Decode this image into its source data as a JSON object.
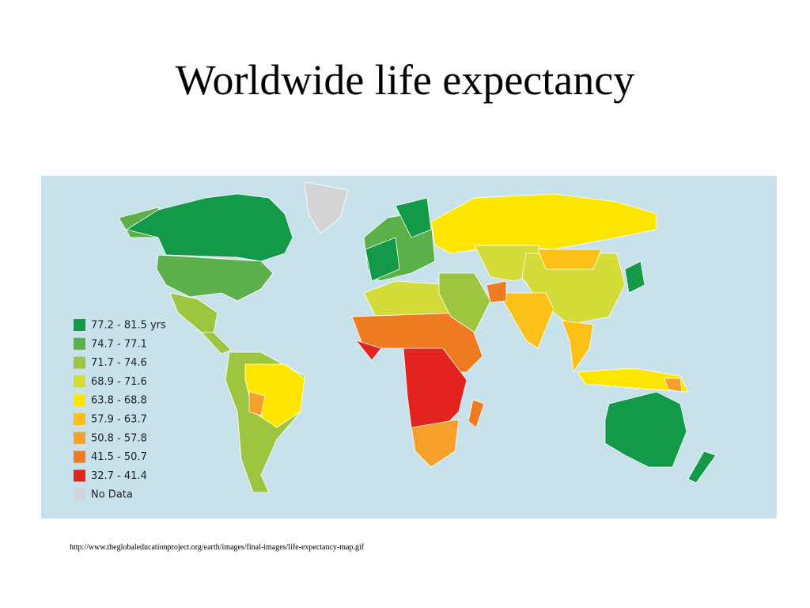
{
  "title": "Worldwide life expectancy",
  "map": {
    "legend": [
      {
        "label": "77.2 - 81.5 yrs",
        "color": "#139a48"
      },
      {
        "label": "74.7 - 77.1",
        "color": "#5cb04a"
      },
      {
        "label": "71.7 - 74.6",
        "color": "#9fc43f"
      },
      {
        "label": "68.9 - 71.6",
        "color": "#d3dc38"
      },
      {
        "label": "63.8 - 68.8",
        "color": "#ffe600"
      },
      {
        "label": "57.9 - 63.7",
        "color": "#fcc118"
      },
      {
        "label": "50.8 - 57.8",
        "color": "#f6a02a"
      },
      {
        "label": "41.5 - 50.7",
        "color": "#ee7a22"
      },
      {
        "label": "32.7 - 41.4",
        "color": "#e2231f"
      },
      {
        "label": "No Data",
        "color": "#d4d4d6"
      }
    ]
  },
  "source": "http://www.theglobaleducationproject.org/earth/images/final-images/life-expectancy-map.gif"
}
